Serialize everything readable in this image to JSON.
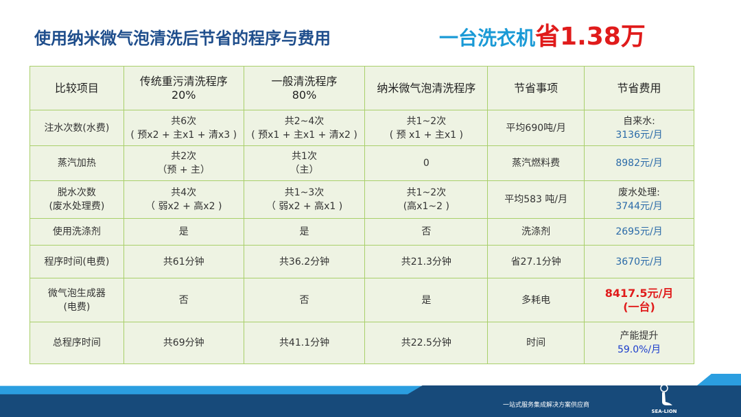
{
  "title": "使用纳米微气泡清洗后节省的程序与费用",
  "headline": {
    "prefix": "一台洗衣机",
    "emphasis": "省1.38万"
  },
  "table": {
    "headers": [
      "比较项目",
      "传统重污清洗程序\n20%",
      "一般清洗程序\n80%",
      "纳米微气泡清洗程序",
      "节省事项",
      "节省费用"
    ],
    "rows": [
      [
        "注水次数(水费)",
        "共6次\n( 预x2 + 主x1 + 清x3 )",
        "共2~4次\n( 预x1 + 主x1 + 清x2 )",
        "共1~2次\n( 预 x1 + 主x1 )",
        "平均690吨/月",
        "自来水:",
        "3136元/月"
      ],
      [
        "蒸汽加热",
        "共2次\n（预 + 主）",
        "共1次\n（主）",
        "0",
        "蒸汽燃料费",
        "",
        "8982元/月"
      ],
      [
        "脱水次数\n(废水处理费)",
        "共4次\n（ 弱x2 + 高x2 )",
        "共1~3次\n（ 弱x2 + 高x1 )",
        "共1~2次\n(高x1~2 )",
        "平均583 吨/月",
        "废水处理:",
        "3744元/月"
      ],
      [
        "使用洗涤剂",
        "是",
        "是",
        "否",
        "洗涤剂",
        "",
        "2695元/月"
      ],
      [
        "程序时间(电费)",
        "共61分钟",
        "共36.2分钟",
        "共21.3分钟",
        "省27.1分钟",
        "",
        "3670元/月"
      ],
      [
        "微气泡生成器\n(电费)",
        "否",
        "否",
        "是",
        "多耗电",
        "",
        "8417.5元/月\n(一台)"
      ],
      [
        "总程序时间",
        "共69分钟",
        "共41.1分钟",
        "共22.5分钟",
        "时间",
        "产能提升",
        "59.0%/月"
      ]
    ]
  },
  "footer": {
    "slogan": "一站式服务集成解决方案供应商",
    "logo_text": "SEA-LION"
  },
  "colors": {
    "title": "#1f4e8c",
    "accent": "#1a9ad6",
    "highlight": "#e01b1b",
    "border": "#a8cf6a"
  }
}
